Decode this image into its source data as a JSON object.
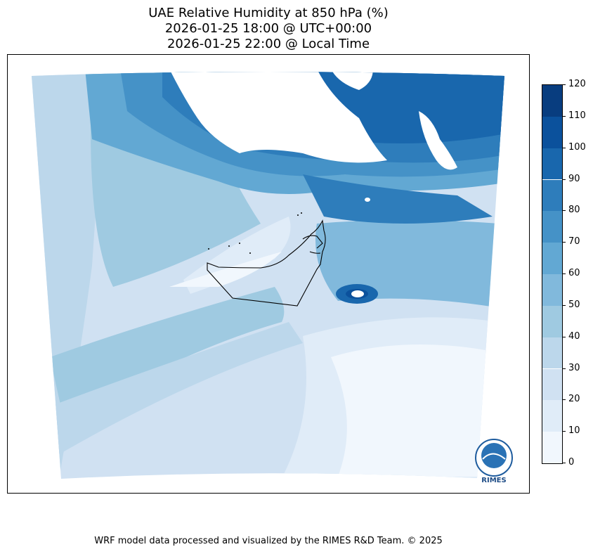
{
  "title": {
    "line1": "UAE Relative Humidity at 850 hPa (%)",
    "line2": "2026-01-25 18:00 @ UTC+00:00",
    "line3": "2026-01-25 22:00 @ Local Time"
  },
  "colorbar": {
    "ticks": [
      "0",
      "10",
      "20",
      "30",
      "40",
      "50",
      "60",
      "70",
      "80",
      "90",
      "100",
      "110",
      "120"
    ],
    "colors": [
      "#f1f7fd",
      "#e0ecf8",
      "#d0e1f2",
      "#bcd7eb",
      "#9fcae1",
      "#81b9dc",
      "#62a8d3",
      "#4592c7",
      "#2e7dbb",
      "#1967ad",
      "#0b519c",
      "#083d7f"
    ]
  },
  "logo": {
    "text": "RIMES"
  },
  "footer": "WRF model data processed and visualized by the RIMES R&D Team. © 2025"
}
